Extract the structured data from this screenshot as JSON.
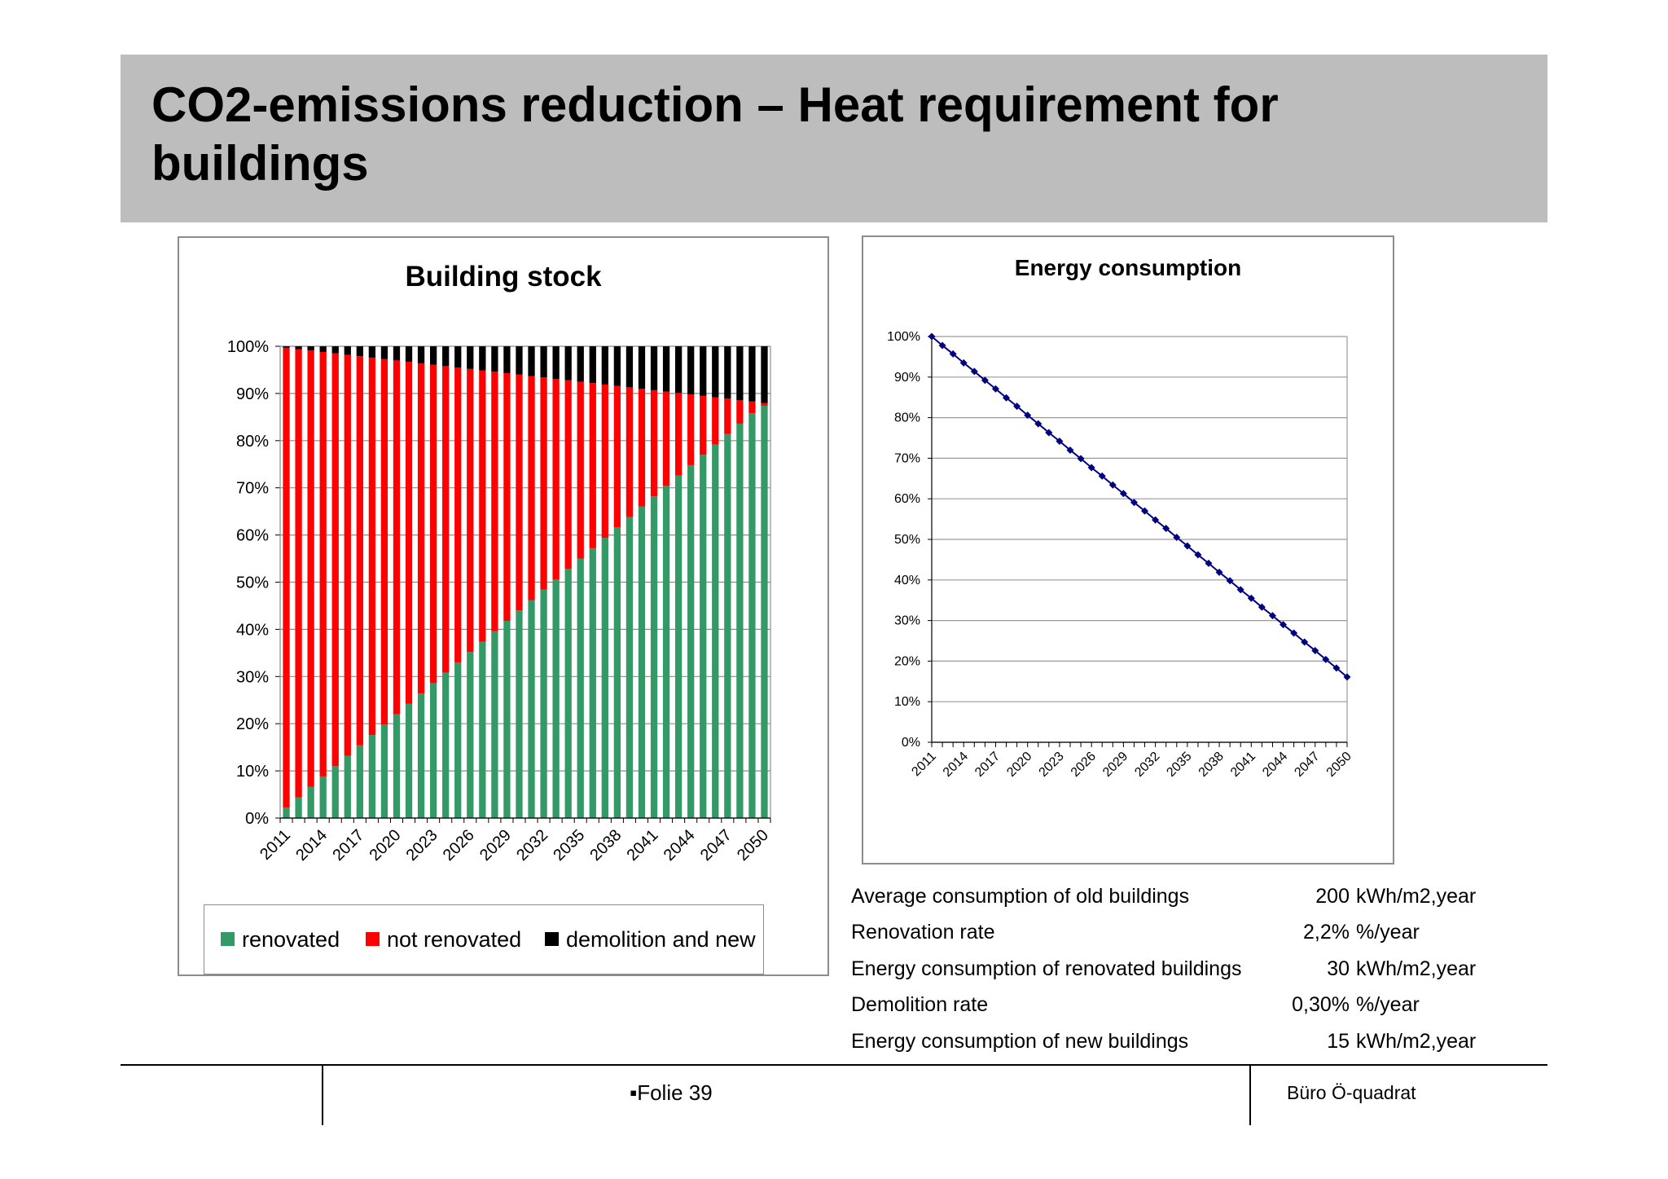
{
  "slide": {
    "title_line1": "CO2-emissions reduction – Heat requirement for",
    "title_line2": "buildings"
  },
  "charts": {
    "left_title": "Building stock",
    "right_title": "Energy consumption"
  },
  "legend": {
    "renovated": "renovated",
    "not_renovated": "not renovated",
    "demolition": "demolition and new"
  },
  "colors": {
    "renovated": "#339966",
    "not_renovated": "#ff0000",
    "demolition": "#000000",
    "line": "#000080"
  },
  "parameters": [
    {
      "label": "Average consumption of old buildings",
      "value": "200",
      "unit": "kWh/m2,year"
    },
    {
      "label": "Renovation rate",
      "value": "2,2%",
      "unit": "%/year"
    },
    {
      "label": "Energy consumption of renovated buildings",
      "value": "30",
      "unit": "kWh/m2,year"
    },
    {
      "label": "Demolition rate",
      "value": "0,30%",
      "unit": "%/year"
    },
    {
      "label": "Energy consumption of new buildings",
      "value": "15",
      "unit": "kWh/m2,year"
    }
  ],
  "footer": {
    "slide_label": "▪Folie 39",
    "brand": "Büro Ö-quadrat"
  },
  "chart_data": [
    {
      "type": "bar",
      "stacked": true,
      "title": "Building stock",
      "categories": [
        2011,
        2012,
        2013,
        2014,
        2015,
        2016,
        2017,
        2018,
        2019,
        2020,
        2021,
        2022,
        2023,
        2024,
        2025,
        2026,
        2027,
        2028,
        2029,
        2030,
        2031,
        2032,
        2033,
        2034,
        2035,
        2036,
        2037,
        2038,
        2039,
        2040,
        2041,
        2042,
        2043,
        2044,
        2045,
        2046,
        2047,
        2048,
        2049,
        2050
      ],
      "tick_labels": [
        "2011",
        "2014",
        "2017",
        "2020",
        "2023",
        "2026",
        "2029",
        "2032",
        "2035",
        "2038",
        "2041",
        "2044",
        "2047",
        "2050"
      ],
      "ylim": [
        0,
        100
      ],
      "yticks": [
        "0%",
        "10%",
        "20%",
        "30%",
        "40%",
        "50%",
        "60%",
        "70%",
        "80%",
        "90%",
        "100%"
      ],
      "series": [
        {
          "name": "renovated",
          "values": [
            2.2,
            4.4,
            6.6,
            8.8,
            11.0,
            13.2,
            15.4,
            17.6,
            19.8,
            22.0,
            24.2,
            26.4,
            28.6,
            30.8,
            33.0,
            35.2,
            37.4,
            39.6,
            41.8,
            44.0,
            46.2,
            48.4,
            50.6,
            52.8,
            55.0,
            57.2,
            59.4,
            61.6,
            63.8,
            66.0,
            68.2,
            70.4,
            72.6,
            74.8,
            77.0,
            79.2,
            81.4,
            83.6,
            85.8,
            87.4
          ]
        },
        {
          "name": "not renovated",
          "values": [
            97.5,
            95.0,
            92.5,
            90.0,
            87.5,
            85.0,
            82.5,
            80.0,
            77.5,
            75.0,
            72.5,
            70.0,
            67.5,
            65.0,
            62.5,
            60.0,
            57.5,
            55.0,
            52.5,
            50.0,
            47.5,
            45.0,
            42.5,
            40.0,
            37.5,
            35.0,
            32.5,
            30.0,
            27.5,
            25.0,
            22.5,
            20.0,
            17.5,
            15.0,
            12.5,
            10.0,
            7.5,
            5.0,
            2.5,
            0.6
          ]
        },
        {
          "name": "demolition and new",
          "values": [
            0.3,
            0.6,
            0.9,
            1.2,
            1.5,
            1.8,
            2.1,
            2.4,
            2.7,
            3.0,
            3.3,
            3.6,
            3.9,
            4.2,
            4.5,
            4.8,
            5.1,
            5.4,
            5.7,
            6.0,
            6.3,
            6.6,
            6.9,
            7.2,
            7.5,
            7.8,
            8.1,
            8.4,
            8.7,
            9.0,
            9.3,
            9.6,
            9.9,
            10.2,
            10.5,
            10.8,
            11.1,
            11.4,
            11.7,
            12.0
          ]
        }
      ],
      "legend": "bottom"
    },
    {
      "type": "line",
      "title": "Energy consumption",
      "x": [
        2011,
        2012,
        2013,
        2014,
        2015,
        2016,
        2017,
        2018,
        2019,
        2020,
        2021,
        2022,
        2023,
        2024,
        2025,
        2026,
        2027,
        2028,
        2029,
        2030,
        2031,
        2032,
        2033,
        2034,
        2035,
        2036,
        2037,
        2038,
        2039,
        2040,
        2041,
        2042,
        2043,
        2044,
        2045,
        2046,
        2047,
        2048,
        2049,
        2050
      ],
      "tick_labels": [
        "2011",
        "2014",
        "2017",
        "2020",
        "2023",
        "2026",
        "2029",
        "2032",
        "2035",
        "2038",
        "2041",
        "2044",
        "2047",
        "2050"
      ],
      "ylim": [
        0,
        100
      ],
      "yticks": [
        "0%",
        "10%",
        "20%",
        "30%",
        "40%",
        "50%",
        "60%",
        "70%",
        "80%",
        "90%",
        "100%"
      ],
      "series": [
        {
          "values": [
            100.0,
            97.8,
            95.7,
            93.5,
            91.4,
            89.2,
            87.1,
            84.9,
            82.8,
            80.6,
            78.5,
            76.3,
            74.2,
            72.0,
            69.9,
            67.7,
            65.6,
            63.4,
            61.3,
            59.1,
            57.0,
            54.8,
            52.7,
            50.5,
            48.4,
            46.2,
            44.1,
            41.9,
            39.8,
            37.6,
            35.5,
            33.3,
            31.2,
            29.0,
            26.9,
            24.7,
            22.6,
            20.4,
            18.3,
            16.1
          ]
        }
      ],
      "grid": true
    }
  ]
}
